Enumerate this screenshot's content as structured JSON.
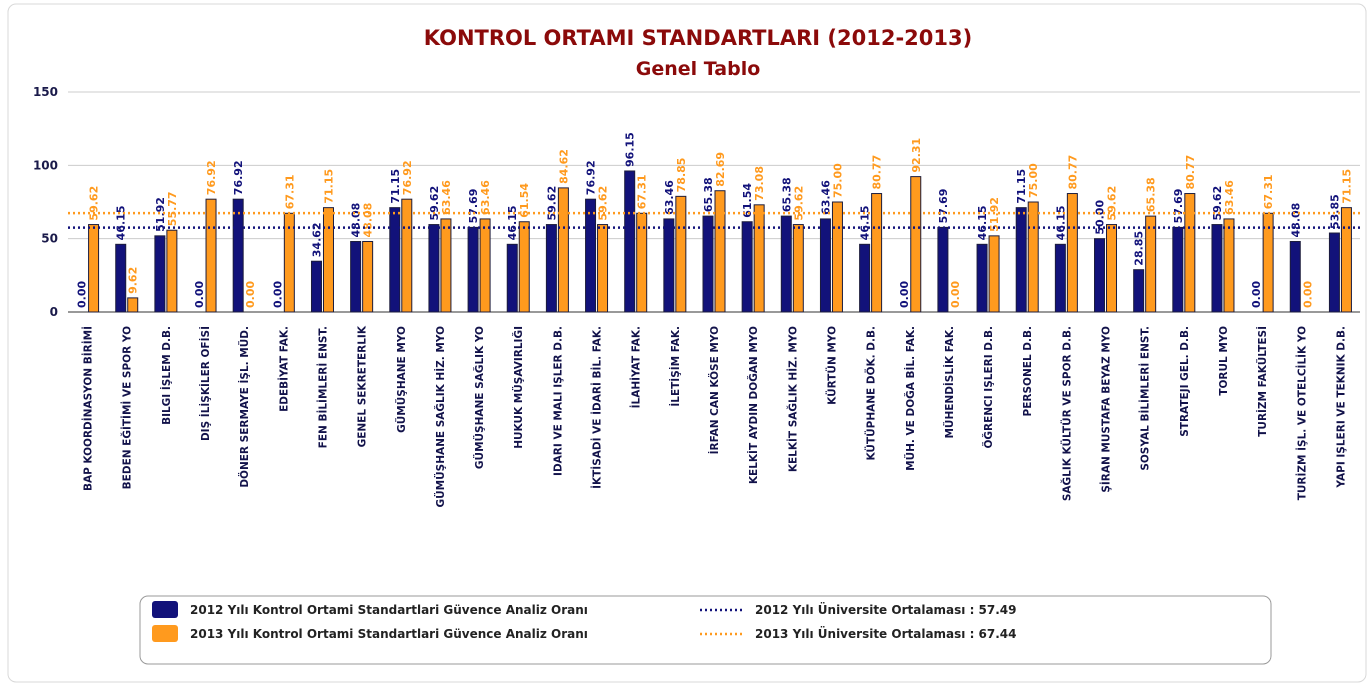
{
  "chart_data": {
    "type": "bar",
    "title": "KONTROL ORTAMI STANDARTLARI (2012-2013)",
    "subtitle": "Genel Tablo",
    "categories": [
      "BAP KOORDİNASYON BİRİMİ",
      "BEDEN EĞİTİMİ VE SPOR YO",
      "BILGI İŞLEM D.B.",
      "DIŞ İLİŞKİLER OFİSİ",
      "DÖNER SERMAYE İŞL. MÜD.",
      "EDEBİYAT FAK.",
      "FEN BİLİMLERİ ENST.",
      "GENEL SEKRETERLIK",
      "GÜMÜŞHANE MYO",
      "GÜMÜŞHANE SAĞLIK HİZ. MYO",
      "GÜMÜŞHANE SAĞLIK YO",
      "HUKUK MÜŞAVIRLIĞI",
      "IDARI VE MALI IŞLER D.B.",
      "İKTİSADİ VE İDARİ BİL. FAK.",
      "İLAHİYAT FAK.",
      "İLETİŞİM FAK.",
      "İRFAN CAN KÖSE MYO",
      "KELKİT AYDIN DOĞAN MYO",
      "KELKİT SAĞLIK HİZ. MYO",
      "KÜRTÜN MYO",
      "KÜTÜPHANE DÖK. D.B.",
      "MÜH. VE DOĞA BİL. FAK.",
      "MÜHENDİSLİK FAK.",
      "ÖĞRENCI IŞLERI D.B.",
      "PERSONEL D.B.",
      "SAĞLIK KÜLTÜR VE SPOR D.B.",
      "ŞİRAN MUSTAFA BEYAZ MYO",
      "SOSYAL BİLİMLERİ ENST.",
      "STRATEJI GEL. D.B.",
      "TORUL MYO",
      "TURİZM FAKÜLTESİ",
      "TURİZM İŞL. VE OTELCİLİK YO",
      "YAPI IŞLERI VE TEKNIK D.B."
    ],
    "series": [
      {
        "name": "2012 Yılı Kontrol Ortami Standartlari Güvence Analiz Oranı",
        "color": "#12127a",
        "values": [
          0,
          46.15,
          51.92,
          0,
          76.92,
          0,
          34.62,
          48.08,
          71.15,
          59.62,
          57.69,
          46.15,
          59.62,
          76.92,
          96.15,
          63.46,
          65.38,
          61.54,
          65.38,
          63.46,
          46.15,
          0,
          57.69,
          46.15,
          71.15,
          46.15,
          50,
          28.85,
          57.69,
          59.62,
          0,
          48.08,
          53.85
        ],
        "value_labels": [
          "0.00",
          "46.15",
          "51.92",
          "0.00",
          "76.92",
          "0.00",
          "34.62",
          "48.08",
          "71.15",
          "59.62",
          "57.69",
          "46.15",
          "59.62",
          "76.92",
          "96.15",
          "63.46",
          "65.38",
          "61.54",
          "65.38",
          "63.46",
          "46.15",
          "0.00",
          "57.69",
          "46.15",
          "71.15",
          "46.15",
          "50.00",
          "28.85",
          "57.69",
          "59.62",
          "0.00",
          "48.08",
          "53.85"
        ]
      },
      {
        "name": "2013 Yılı Kontrol Ortami Standartlari Güvence Analiz Oranı",
        "color": "#ff9a1e",
        "values": [
          59.62,
          9.62,
          55.77,
          76.92,
          0,
          67.31,
          71.15,
          48.08,
          76.92,
          63.46,
          63.46,
          61.54,
          84.62,
          59.62,
          67.31,
          78.85,
          82.69,
          73.08,
          59.62,
          75,
          80.77,
          92.31,
          0,
          51.92,
          75,
          80.77,
          59.62,
          65.38,
          80.77,
          63.46,
          67.31,
          0,
          71.15
        ],
        "value_labels": [
          "59.62",
          "9.62",
          "55.77",
          "76.92",
          "0.00",
          "67.31",
          "71.15",
          "48.08",
          "76.92",
          "63.46",
          "63.46",
          "61.54",
          "84.62",
          "59.62",
          "67.31",
          "78.85",
          "82.69",
          "73.08",
          "59.62",
          "75.00",
          "80.77",
          "92.31",
          "0.00",
          "51.92",
          "75.00",
          "80.77",
          "59.62",
          "65.38",
          "80.77",
          "63.46",
          "67.31",
          "0.00",
          "71.15"
        ]
      }
    ],
    "reference_lines": [
      {
        "label": "2012 Yılı Üniversite Ortalaması : 57.49",
        "value": 57.49,
        "color": "#12127a"
      },
      {
        "label": "2013 Yılı Üniversite Ortalaması : 67.44",
        "value": 67.44,
        "color": "#ff9a1e"
      }
    ],
    "ylim": [
      0,
      150
    ],
    "yticks": [
      0,
      50,
      100,
      150
    ],
    "grid": true
  }
}
